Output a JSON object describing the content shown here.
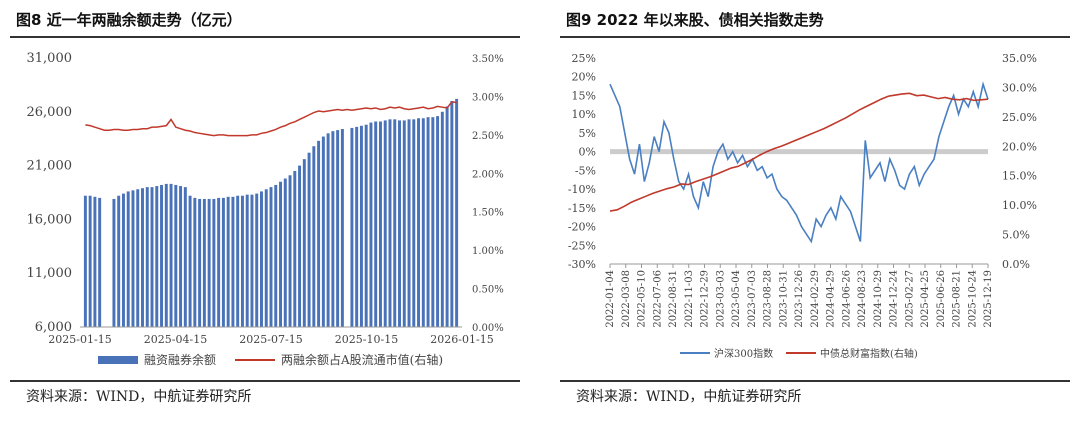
{
  "figures": [
    {
      "title": "图8  近一年两融余额走势（亿元）",
      "source": "资料来源：WIND，中航证券研究所",
      "chart_data": {
        "type": "bar+line",
        "title": "图8  近一年两融余额走势（亿元）",
        "x_ticks": [
          "2025-01-15",
          "2025-04-15",
          "2025-07-15",
          "2025-10-15",
          "2026-01-15"
        ],
        "y_left": {
          "ticks": [
            "6,000",
            "11,000",
            "16,000",
            "21,000",
            "26,000",
            "31,000"
          ],
          "ylim": [
            6000,
            31000
          ]
        },
        "y_right": {
          "ticks": [
            "0.00%",
            "0.50%",
            "1.00%",
            "1.50%",
            "2.00%",
            "2.50%",
            "3.00%",
            "3.50%"
          ],
          "ylim": [
            0,
            3.5
          ]
        },
        "legend_position": "bottom",
        "series": [
          {
            "name": "融资融券余额",
            "type": "bar",
            "axis": "left",
            "color": "#4a72b8",
            "values": [
              18200,
              18200,
              18100,
              18000,
              6000,
              6000,
              17900,
              18200,
              18400,
              18600,
              18700,
              18800,
              18900,
              19000,
              19000,
              19100,
              19200,
              19300,
              19300,
              19200,
              19100,
              19000,
              18200,
              18000,
              17900,
              17900,
              17900,
              17900,
              18000,
              18000,
              18100,
              18100,
              18200,
              18200,
              18300,
              18300,
              18400,
              18600,
              18800,
              19000,
              19200,
              19500,
              19800,
              20100,
              20500,
              21000,
              21600,
              22200,
              22800,
              23300,
              23700,
              24000,
              24200,
              24300,
              24400,
              6000,
              24500,
              24600,
              24700,
              24800,
              25000,
              25100,
              25100,
              25200,
              25300,
              25300,
              25200,
              25200,
              25300,
              25300,
              25400,
              25400,
              25500,
              25500,
              25600,
              26000,
              26500,
              27000,
              27200
            ]
          },
          {
            "name": "两融余额占A股流通市值(右轴)",
            "type": "line",
            "axis": "right",
            "color": "#c0392b",
            "values": [
              2.63,
              2.62,
              2.6,
              2.58,
              2.56,
              2.56,
              2.57,
              2.57,
              2.56,
              2.56,
              2.57,
              2.57,
              2.58,
              2.58,
              2.6,
              2.6,
              2.61,
              2.62,
              2.7,
              2.6,
              2.58,
              2.56,
              2.55,
              2.53,
              2.52,
              2.51,
              2.5,
              2.49,
              2.5,
              2.5,
              2.49,
              2.49,
              2.49,
              2.49,
              2.49,
              2.5,
              2.5,
              2.52,
              2.53,
              2.55,
              2.57,
              2.6,
              2.62,
              2.65,
              2.67,
              2.7,
              2.73,
              2.76,
              2.79,
              2.81,
              2.8,
              2.81,
              2.82,
              2.83,
              2.82,
              2.83,
              2.82,
              2.83,
              2.84,
              2.85,
              2.84,
              2.85,
              2.83,
              2.84,
              2.86,
              2.85,
              2.86,
              2.84,
              2.83,
              2.84,
              2.85,
              2.86,
              2.84,
              2.85,
              2.87,
              2.86,
              2.85,
              2.93,
              2.92
            ]
          }
        ]
      }
    },
    {
      "title": "图9  2022 年以来股、债相关指数走势",
      "source": "资料来源：WIND，中航证券研究所",
      "chart_data": {
        "type": "line",
        "title": "图9  2022 年以来股、债相关指数走势",
        "x_ticks": [
          "2022-01-04",
          "2022-03-08",
          "2022-05-10",
          "2022-07-06",
          "2022-08-31",
          "2022-11-03",
          "2022-12-29",
          "2023-03-03",
          "2023-05-04",
          "2023-07-03",
          "2023-08-28",
          "2023-10-31",
          "2023-12-26",
          "2024-02-29",
          "2024-04-29",
          "2024-06-26",
          "2024-08-23",
          "2024-10-29",
          "2024-12-24",
          "2025-02-27",
          "2025-04-25",
          "2025-06-26",
          "2025-08-21",
          "2025-10-24",
          "2025-12-19"
        ],
        "y_left": {
          "ticks": [
            "-30%",
            "-25%",
            "-20%",
            "-15%",
            "-10%",
            "-5%",
            "0%",
            "5%",
            "10%",
            "15%",
            "20%",
            "25%"
          ],
          "ylim": [
            -30,
            25
          ]
        },
        "y_right": {
          "ticks": [
            "0.0%",
            "5.0%",
            "10.0%",
            "15.0%",
            "20.0%",
            "25.0%",
            "30.0%",
            "35.0%"
          ],
          "ylim": [
            0,
            35
          ]
        },
        "grid": false,
        "legend_position": "bottom",
        "series": [
          {
            "name": "沪深300指数",
            "axis": "left",
            "color": "#4a7fc1",
            "values": [
              18,
              15,
              12,
              5,
              -2,
              -6,
              2,
              -8,
              -3,
              4,
              0,
              8,
              5,
              -2,
              -8,
              -10,
              -6,
              -12,
              -15,
              -8,
              -12,
              -4,
              0,
              2,
              -2,
              0,
              -3,
              -1,
              -4,
              -2,
              -5,
              -4,
              -7,
              -6,
              -10,
              -12,
              -13,
              -15,
              -17,
              -20,
              -22,
              -24,
              -18,
              -20,
              -17,
              -15,
              -18,
              -12,
              -14,
              -16,
              -20,
              -24,
              3,
              -7,
              -5,
              -3,
              -8,
              -2,
              -5,
              -9,
              -10,
              -6,
              -4,
              -9,
              -6,
              -4,
              -2,
              4,
              8,
              12,
              15,
              10,
              14,
              12,
              16,
              12,
              18,
              14
            ]
          },
          {
            "name": "中债总财富指数(右轴)",
            "axis": "right",
            "color": "#c0392b",
            "values": [
              9,
              9.2,
              9.8,
              10.5,
              11,
              11.5,
              12,
              12.4,
              12.8,
              13.1,
              13.6,
              13.5,
              14,
              14.4,
              14.8,
              15.3,
              15.8,
              16.3,
              16.6,
              17.2,
              17.8,
              18.5,
              19.1,
              19.6,
              20,
              20.5,
              21,
              21.5,
              22,
              22.5,
              23,
              23.6,
              24.2,
              24.8,
              25.5,
              26.2,
              26.8,
              27.4,
              28,
              28.5,
              28.7,
              28.9,
              29,
              28.6,
              28.7,
              28.4,
              28.1,
              28.3,
              28,
              27.9,
              28.1,
              27.8,
              27.9,
              28
            ]
          }
        ]
      }
    }
  ]
}
